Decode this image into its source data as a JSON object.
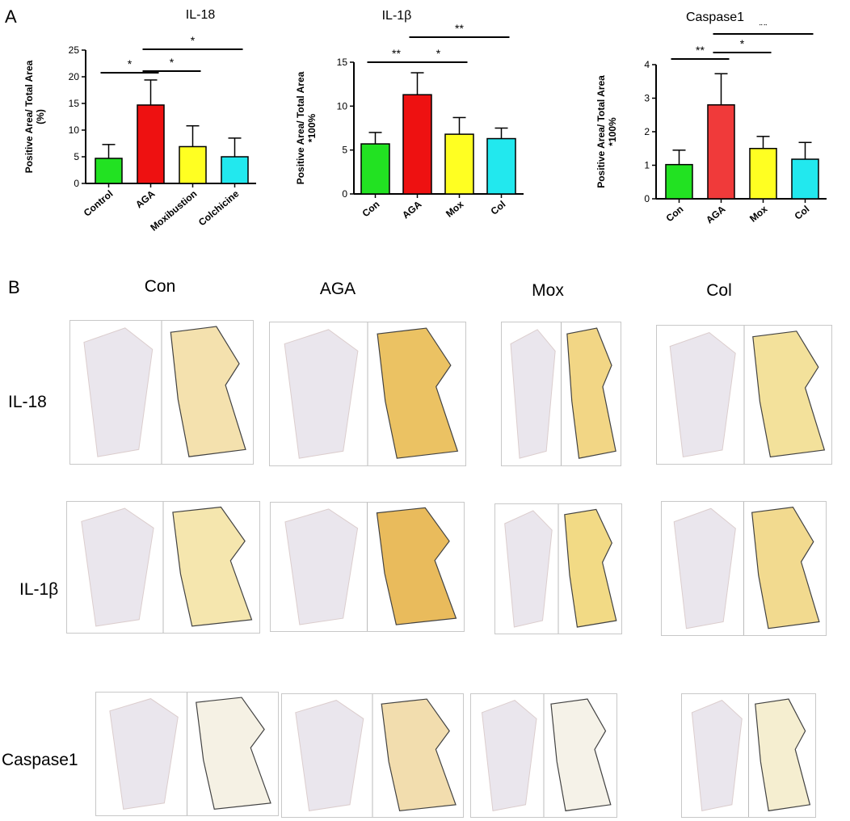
{
  "panel_a": "A",
  "panel_b": "B",
  "chart_data": [
    {
      "type": "bar",
      "title": "IL-18",
      "categories": [
        "Control",
        "AGA",
        "Moxibustion",
        "Colchicine"
      ],
      "values": [
        4.7,
        14.7,
        6.9,
        5.0
      ],
      "errors": [
        2.6,
        4.7,
        3.9,
        3.5
      ],
      "colors": [
        "#22e222",
        "#ee1111",
        "#ffff22",
        "#22e8ee"
      ],
      "ylabel_lines": [
        "Positive Area/ Total Area",
        "(%)"
      ],
      "ylim": [
        0,
        25
      ],
      "yticks": [
        0,
        5,
        10,
        15,
        20,
        25
      ],
      "significance": [
        {
          "from": 0,
          "to": 1,
          "label": "*"
        },
        {
          "from": 1,
          "to": 2,
          "label": "*"
        },
        {
          "from": 1,
          "to": 3,
          "label": "*"
        }
      ]
    },
    {
      "type": "bar",
      "title": "IL-1β",
      "categories": [
        "Con",
        "AGA",
        "Mox",
        "Col"
      ],
      "values": [
        5.7,
        11.3,
        6.8,
        6.3
      ],
      "errors": [
        1.3,
        2.5,
        1.9,
        1.2
      ],
      "colors": [
        "#22e222",
        "#ee1111",
        "#ffff22",
        "#22e8ee"
      ],
      "ylabel_lines": [
        "Positive Area/ Total Area",
        "*100%"
      ],
      "ylim": [
        0,
        15
      ],
      "yticks": [
        0,
        5,
        10,
        15
      ],
      "significance": [
        {
          "from": 0,
          "to": 1,
          "label": "**"
        },
        {
          "from": 1,
          "to": 2,
          "label": "*"
        },
        {
          "from": 1,
          "to": 3,
          "label": "**"
        }
      ]
    },
    {
      "type": "bar",
      "title": "Caspase1",
      "categories": [
        "Con",
        "AGA",
        "Mox",
        "Col"
      ],
      "values": [
        1.02,
        2.8,
        1.5,
        1.18
      ],
      "errors": [
        0.43,
        0.93,
        0.36,
        0.5
      ],
      "colors": [
        "#22e222",
        "#f03a3a",
        "#ffff22",
        "#22e8ee"
      ],
      "ylabel_lines": [
        "Positive Area/ Total Area",
        "*100%"
      ],
      "ylim": [
        0,
        4
      ],
      "yticks": [
        0,
        1,
        2,
        3,
        4
      ],
      "significance": [
        {
          "from": 0,
          "to": 1,
          "label": "**"
        },
        {
          "from": 1,
          "to": 2,
          "label": "*"
        },
        {
          "from": 1,
          "to": 3,
          "label": "**"
        }
      ]
    }
  ],
  "micrographs": {
    "columns": [
      "Con",
      "AGA",
      "Mox",
      "Col"
    ],
    "rows": [
      "IL-18",
      "IL-1β",
      "Caspase1"
    ]
  }
}
